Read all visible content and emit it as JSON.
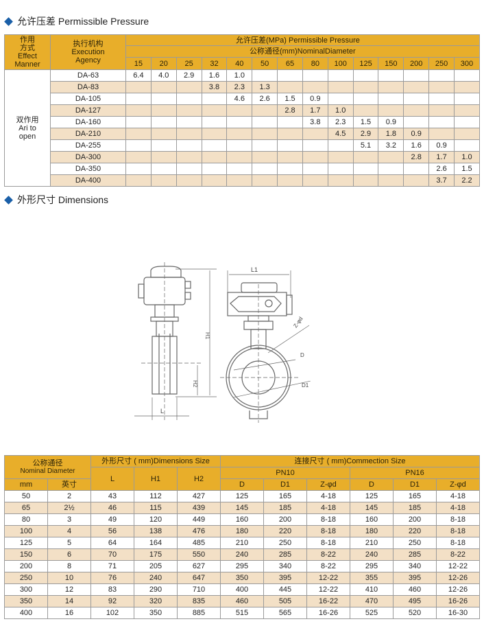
{
  "section1_title": "允许压差 Permissible Pressure",
  "pressure_table": {
    "col_effect": [
      "作用",
      "方式",
      "Effect",
      "Manner"
    ],
    "col_agency": [
      "执行机构",
      "Execution",
      "Agency"
    ],
    "header_pressure": "允许压差(MPa) Permissible Pressure",
    "header_diameter": "公称通径(mm)NominalDiameter",
    "diameters": [
      "15",
      "20",
      "25",
      "32",
      "40",
      "50",
      "65",
      "80",
      "100",
      "125",
      "150",
      "200",
      "250",
      "300"
    ],
    "effect_value": [
      "双作用",
      "Ari to",
      "open"
    ],
    "rows": [
      {
        "model": "DA-63",
        "values": [
          "6.4",
          "4.0",
          "2.9",
          "1.6",
          "1.0",
          "",
          "",
          "",
          "",
          "",
          "",
          "",
          "",
          ""
        ]
      },
      {
        "model": "DA-83",
        "values": [
          "",
          "",
          "",
          "3.8",
          "2.3",
          "1.3",
          "",
          "",
          "",
          "",
          "",
          "",
          "",
          ""
        ]
      },
      {
        "model": "DA-105",
        "values": [
          "",
          "",
          "",
          "",
          "4.6",
          "2.6",
          "1.5",
          "0.9",
          "",
          "",
          "",
          "",
          "",
          ""
        ]
      },
      {
        "model": "DA-127",
        "values": [
          "",
          "",
          "",
          "",
          "",
          "",
          "2.8",
          "1.7",
          "1.0",
          "",
          "",
          "",
          "",
          ""
        ]
      },
      {
        "model": "DA-160",
        "values": [
          "",
          "",
          "",
          "",
          "",
          "",
          "",
          "3.8",
          "2.3",
          "1.5",
          "0.9",
          "",
          "",
          ""
        ]
      },
      {
        "model": "DA-210",
        "values": [
          "",
          "",
          "",
          "",
          "",
          "",
          "",
          "",
          "4.5",
          "2.9",
          "1.8",
          "0.9",
          "",
          ""
        ]
      },
      {
        "model": "DA-255",
        "values": [
          "",
          "",
          "",
          "",
          "",
          "",
          "",
          "",
          "",
          "5.1",
          "3.2",
          "1.6",
          "0.9",
          ""
        ]
      },
      {
        "model": "DA-300",
        "values": [
          "",
          "",
          "",
          "",
          "",
          "",
          "",
          "",
          "",
          "",
          "",
          "2.8",
          "1.7",
          "1.0"
        ]
      },
      {
        "model": "DA-350",
        "values": [
          "",
          "",
          "",
          "",
          "",
          "",
          "",
          "",
          "",
          "",
          "",
          "",
          "2.6",
          "1.5"
        ]
      },
      {
        "model": "DA-400",
        "values": [
          "",
          "",
          "",
          "",
          "",
          "",
          "",
          "",
          "",
          "",
          "",
          "",
          "3.7",
          "2.2"
        ]
      }
    ]
  },
  "section2_title": "外形尺寸 Dimensions",
  "drawing": {
    "labels": {
      "L1": "L1",
      "H1": "H1",
      "H2": "H2",
      "L": "L",
      "D": "D",
      "D1": "D1",
      "Z": "Z-φd"
    }
  },
  "dimension_table": {
    "nominal_cn": "公称通径",
    "nominal_en": "Nominal Diameter",
    "mm": "mm",
    "inch": "英寸",
    "dims_header": "外形尺寸 ( mm)Dimensions Size",
    "conn_header": "连接尺寸 ( mm)Commection Size",
    "L": "L",
    "H1": "H1",
    "H2": "H2",
    "pn10": "PN10",
    "pn16": "PN16",
    "D": "D",
    "D1": "D1",
    "Z": "Z-φd",
    "rows": [
      [
        "50",
        "2",
        "43",
        "112",
        "427",
        "125",
        "165",
        "4-18",
        "125",
        "165",
        "4-18"
      ],
      [
        "65",
        "2½",
        "46",
        "115",
        "439",
        "145",
        "185",
        "4-18",
        "145",
        "185",
        "4-18"
      ],
      [
        "80",
        "3",
        "49",
        "120",
        "449",
        "160",
        "200",
        "8-18",
        "160",
        "200",
        "8-18"
      ],
      [
        "100",
        "4",
        "56",
        "138",
        "476",
        "180",
        "220",
        "8-18",
        "180",
        "220",
        "8-18"
      ],
      [
        "125",
        "5",
        "64",
        "164",
        "485",
        "210",
        "250",
        "8-18",
        "210",
        "250",
        "8-18"
      ],
      [
        "150",
        "6",
        "70",
        "175",
        "550",
        "240",
        "285",
        "8-22",
        "240",
        "285",
        "8-22"
      ],
      [
        "200",
        "8",
        "71",
        "205",
        "627",
        "295",
        "340",
        "8-22",
        "295",
        "340",
        "12-22"
      ],
      [
        "250",
        "10",
        "76",
        "240",
        "647",
        "350",
        "395",
        "12-22",
        "355",
        "395",
        "12-26"
      ],
      [
        "300",
        "12",
        "83",
        "290",
        "710",
        "400",
        "445",
        "12-22",
        "410",
        "460",
        "12-26"
      ],
      [
        "350",
        "14",
        "92",
        "320",
        "835",
        "460",
        "505",
        "16-22",
        "470",
        "495",
        "16-26"
      ],
      [
        "400",
        "16",
        "102",
        "350",
        "885",
        "515",
        "565",
        "16-26",
        "525",
        "520",
        "16-30"
      ]
    ]
  },
  "colors": {
    "header": "#e8ae2a",
    "alt_row": "#f3e0c6",
    "bullet": "#1a5fa8"
  }
}
